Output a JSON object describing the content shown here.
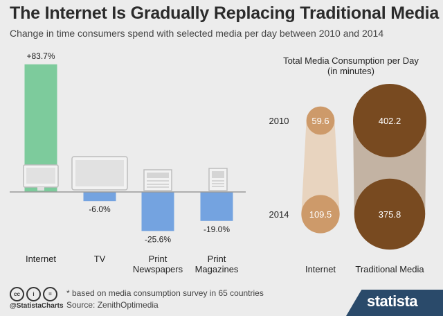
{
  "header": {
    "title": "The Internet Is Gradually Replacing Traditional Media",
    "subtitle": "Change in time consumers spend with selected media per day between 2010 and 2014"
  },
  "chart_data": [
    {
      "type": "bar",
      "categories": [
        "Internet",
        "TV",
        "Print\nNewspapers",
        "Print\nMagazines"
      ],
      "values": [
        83.7,
        -6.0,
        -25.6,
        -19.0
      ],
      "value_labels": [
        "+83.7%",
        "-6.0%",
        "-25.6%",
        "-19.0%"
      ],
      "colors": {
        "positive": "#7dcb9c",
        "negative": "#74a3e0"
      },
      "icons": [
        "monitor-icon",
        "tv-icon",
        "newspaper-icon",
        "magazine-icon"
      ]
    },
    {
      "type": "bubble",
      "title": "Total Media Consumption per Day\n(in minutes)",
      "rows": [
        "2010",
        "2014"
      ],
      "columns": [
        "Internet",
        "Traditional Media"
      ],
      "values": [
        [
          59.6,
          402.2
        ],
        [
          109.5,
          375.8
        ]
      ],
      "colors": {
        "Internet": "#cd9a6a",
        "Traditional Media": "#784a20"
      }
    }
  ],
  "footer": {
    "note": "* based on media consumption survey in 65 countries",
    "source": "Source: ZenithOptimedia",
    "handle": "@StatistaCharts",
    "cc_icons": [
      "cc",
      "i",
      "="
    ],
    "logo": "statista"
  }
}
